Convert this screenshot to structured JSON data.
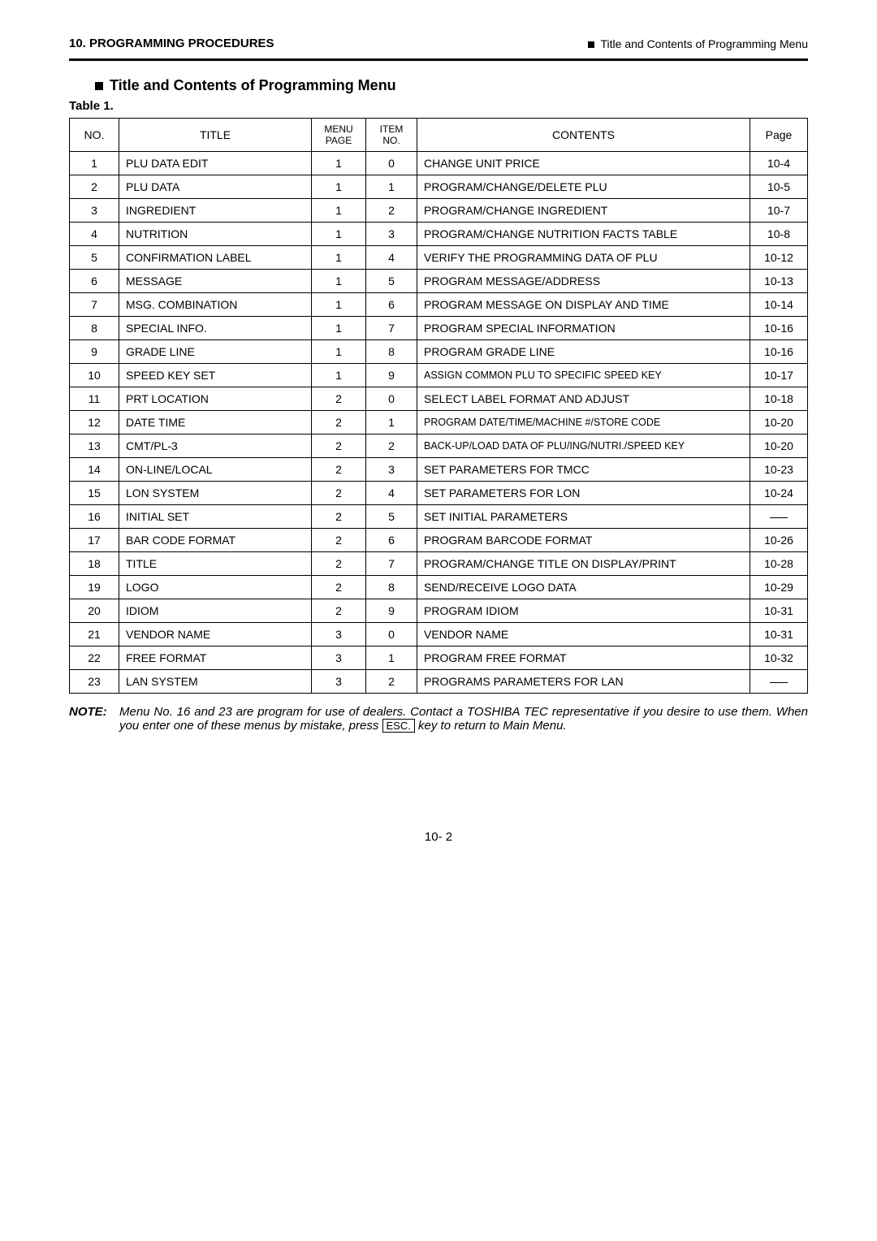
{
  "header": {
    "left": "10. PROGRAMMING PROCEDURES",
    "right": "Title and Contents of Programming Menu"
  },
  "section_title": "Title and Contents of Programming Menu",
  "table_label": "Table 1.",
  "table": {
    "headers": {
      "no": "NO.",
      "title": "TITLE",
      "menu_page_l1": "MENU",
      "menu_page_l2": "PAGE",
      "item_no_l1": "ITEM",
      "item_no_l2": "NO.",
      "contents": "CONTENTS",
      "page": "Page"
    },
    "rows": [
      {
        "no": "1",
        "title": "PLU DATA EDIT",
        "menu": "1",
        "item": "0",
        "contents": "CHANGE UNIT PRICE",
        "page": "10-4"
      },
      {
        "no": "2",
        "title": "PLU DATA",
        "menu": "1",
        "item": "1",
        "contents": "PROGRAM/CHANGE/DELETE PLU",
        "page": "10-5"
      },
      {
        "no": "3",
        "title": "INGREDIENT",
        "menu": "1",
        "item": "2",
        "contents": "PROGRAM/CHANGE INGREDIENT",
        "page": "10-7"
      },
      {
        "no": "4",
        "title": "NUTRITION",
        "menu": "1",
        "item": "3",
        "contents": "PROGRAM/CHANGE NUTRITION FACTS TABLE",
        "page": "10-8"
      },
      {
        "no": "5",
        "title": "CONFIRMATION LABEL",
        "menu": "1",
        "item": "4",
        "contents": "VERIFY THE PROGRAMMING DATA OF PLU",
        "page": "10-12"
      },
      {
        "no": "6",
        "title": "MESSAGE",
        "menu": "1",
        "item": "5",
        "contents": "PROGRAM MESSAGE/ADDRESS",
        "page": "10-13"
      },
      {
        "no": "7",
        "title": "MSG. COMBINATION",
        "menu": "1",
        "item": "6",
        "contents": "PROGRAM MESSAGE ON DISPLAY AND TIME",
        "page": "10-14"
      },
      {
        "no": "8",
        "title": "SPECIAL INFO.",
        "menu": "1",
        "item": "7",
        "contents": "PROGRAM SPECIAL INFORMATION",
        "page": "10-16"
      },
      {
        "no": "9",
        "title": "GRADE LINE",
        "menu": "1",
        "item": "8",
        "contents": "PROGRAM GRADE LINE",
        "page": "10-16"
      },
      {
        "no": "10",
        "title": "SPEED KEY SET",
        "menu": "1",
        "item": "9",
        "contents": "ASSIGN COMMON PLU TO SPECIFIC SPEED KEY",
        "page": "10-17",
        "small": true
      },
      {
        "no": "11",
        "title": "PRT LOCATION",
        "menu": "2",
        "item": "0",
        "contents": "SELECT LABEL FORMAT AND ADJUST",
        "page": "10-18"
      },
      {
        "no": "12",
        "title": "DATE TIME",
        "menu": "2",
        "item": "1",
        "contents": "PROGRAM DATE/TIME/MACHINE #/STORE CODE",
        "page": "10-20",
        "small": true
      },
      {
        "no": "13",
        "title": "CMT/PL-3",
        "menu": "2",
        "item": "2",
        "contents": "BACK-UP/LOAD DATA OF PLU/ING/NUTRI./SPEED KEY",
        "page": "10-20",
        "small": true
      },
      {
        "no": "14",
        "title": "ON-LINE/LOCAL",
        "menu": "2",
        "item": "3",
        "contents": "SET PARAMETERS FOR TMCC",
        "page": "10-23"
      },
      {
        "no": "15",
        "title": "LON SYSTEM",
        "menu": "2",
        "item": "4",
        "contents": "SET PARAMETERS FOR LON",
        "page": "10-24"
      },
      {
        "no": "16",
        "title": "INITIAL SET",
        "menu": "2",
        "item": "5",
        "contents": "SET INITIAL PARAMETERS",
        "page": "DASH"
      },
      {
        "no": "17",
        "title": "BAR CODE FORMAT",
        "menu": "2",
        "item": "6",
        "contents": "PROGRAM BARCODE FORMAT",
        "page": "10-26"
      },
      {
        "no": "18",
        "title": "TITLE",
        "menu": "2",
        "item": "7",
        "contents": "PROGRAM/CHANGE TITLE ON DISPLAY/PRINT",
        "page": "10-28"
      },
      {
        "no": "19",
        "title": "LOGO",
        "menu": "2",
        "item": "8",
        "contents": "SEND/RECEIVE LOGO DATA",
        "page": "10-29"
      },
      {
        "no": "20",
        "title": "IDIOM",
        "menu": "2",
        "item": "9",
        "contents": "PROGRAM IDIOM",
        "page": "10-31"
      },
      {
        "no": "21",
        "title": "VENDOR NAME",
        "menu": "3",
        "item": "0",
        "contents": "VENDOR NAME",
        "page": "10-31"
      },
      {
        "no": "22",
        "title": "FREE FORMAT",
        "menu": "3",
        "item": "1",
        "contents": "PROGRAM FREE FORMAT",
        "page": "10-32"
      },
      {
        "no": "23",
        "title": "LAN SYSTEM",
        "menu": "3",
        "item": "2",
        "contents": "PROGRAMS PARAMETERS FOR LAN",
        "page": "DASH"
      }
    ]
  },
  "note": {
    "label": "NOTE:",
    "line1": "Menu No. 16 and 23 are program for use of dealers.  Contact a TOSHIBA TEC representative if you desire to use them.  When you enter one of these menus by mistake, press ",
    "key": "ESC.",
    "line2": " key to return to Main Menu."
  },
  "footer": "10- 2"
}
